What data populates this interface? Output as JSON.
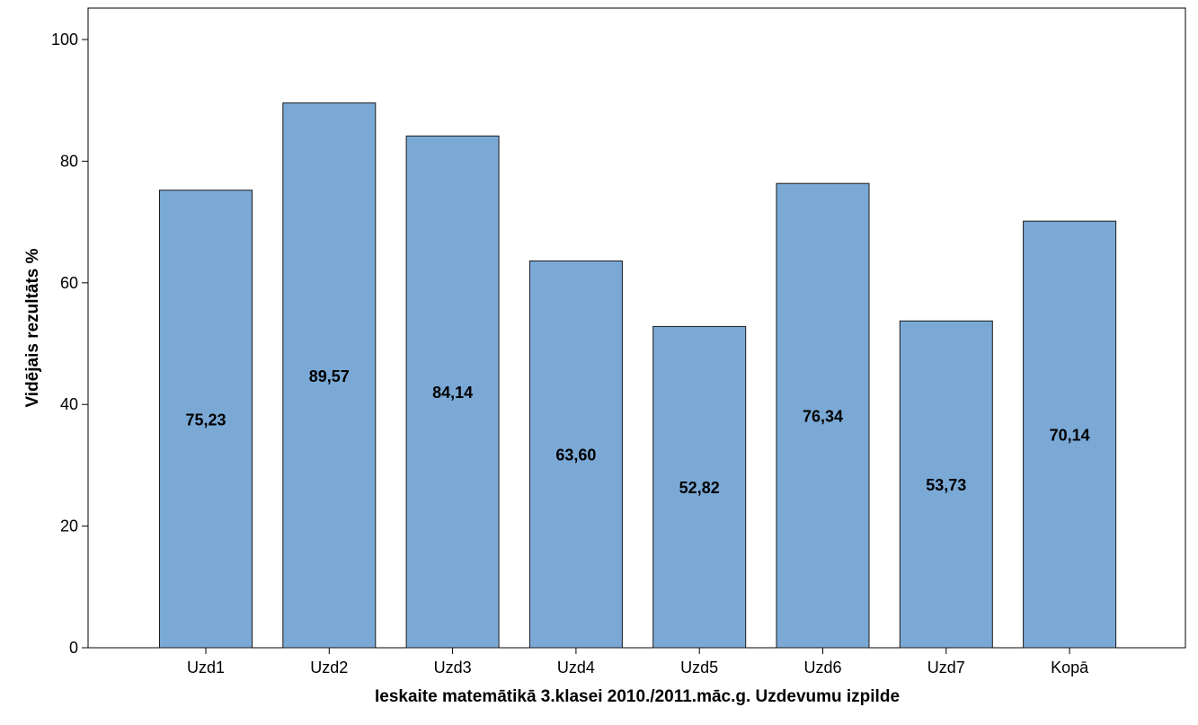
{
  "chart_data": {
    "type": "bar",
    "categories": [
      "Uzd1",
      "Uzd2",
      "Uzd3",
      "Uzd4",
      "Uzd5",
      "Uzd6",
      "Uzd7",
      "Kopā"
    ],
    "values": [
      75.23,
      89.57,
      84.14,
      63.6,
      52.82,
      76.34,
      53.73,
      70.14
    ],
    "data_labels": [
      "75,23",
      "89,57",
      "84,14",
      "63,60",
      "52,82",
      "76,34",
      "53,73",
      "70,14"
    ],
    "xlabel": "Ieskaite matemātikā 3.klasei 2010./2011.māc.g. Uzdevumu izpilde",
    "ylabel": "Vidējais rezultāts %",
    "ylim": [
      0,
      100
    ],
    "yticks": [
      0,
      20,
      40,
      60,
      80,
      100
    ],
    "grid": false,
    "bar_color": "#7ba9d6",
    "bar_edge_color": "#1a1a1a"
  }
}
